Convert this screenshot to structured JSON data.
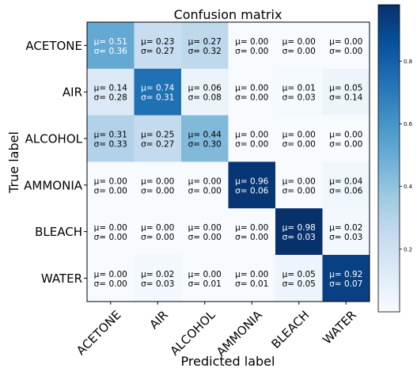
{
  "chart_data": {
    "type": "heatmap",
    "title": "Confusion matrix",
    "xlabel": "Predicted label",
    "ylabel": "True label",
    "row_labels": [
      "ACETONE",
      "AIR",
      "ALCOHOL",
      "AMMONIA",
      "BLEACH",
      "WATER"
    ],
    "col_labels": [
      "ACETONE",
      "AIR",
      "ALCOHOL",
      "AMMONIA",
      "BLEACH",
      "WATER"
    ],
    "mean_prefix": "μ=",
    "std_prefix": "σ=",
    "mean": [
      [
        0.51,
        0.23,
        0.27,
        0.0,
        0.0,
        0.0
      ],
      [
        0.14,
        0.74,
        0.06,
        0.0,
        0.01,
        0.05
      ],
      [
        0.31,
        0.25,
        0.44,
        0.0,
        0.0,
        0.0
      ],
      [
        0.0,
        0.0,
        0.0,
        0.96,
        0.0,
        0.04
      ],
      [
        0.0,
        0.0,
        0.0,
        0.0,
        0.98,
        0.02
      ],
      [
        0.0,
        0.02,
        0.0,
        0.0,
        0.05,
        0.92
      ]
    ],
    "std": [
      [
        0.36,
        0.27,
        0.32,
        0.0,
        0.0,
        0.0
      ],
      [
        0.28,
        0.31,
        0.08,
        0.0,
        0.03,
        0.14
      ],
      [
        0.33,
        0.27,
        0.3,
        0.0,
        0.0,
        0.0
      ],
      [
        0.0,
        0.0,
        0.0,
        0.06,
        0.0,
        0.06
      ],
      [
        0.0,
        0.0,
        0.0,
        0.0,
        0.03,
        0.03
      ],
      [
        0.0,
        0.03,
        0.01,
        0.01,
        0.05,
        0.07
      ]
    ],
    "colorbar": {
      "colormap": "Blues",
      "range": [
        0.0,
        0.98
      ],
      "ticks": [
        0.2,
        0.4,
        0.6,
        0.8
      ],
      "tick_labels": [
        "0.2",
        "0.4",
        "0.6",
        "0.8"
      ]
    },
    "colors": {
      "low": "#f7fbff",
      "high": "#08306b"
    }
  }
}
